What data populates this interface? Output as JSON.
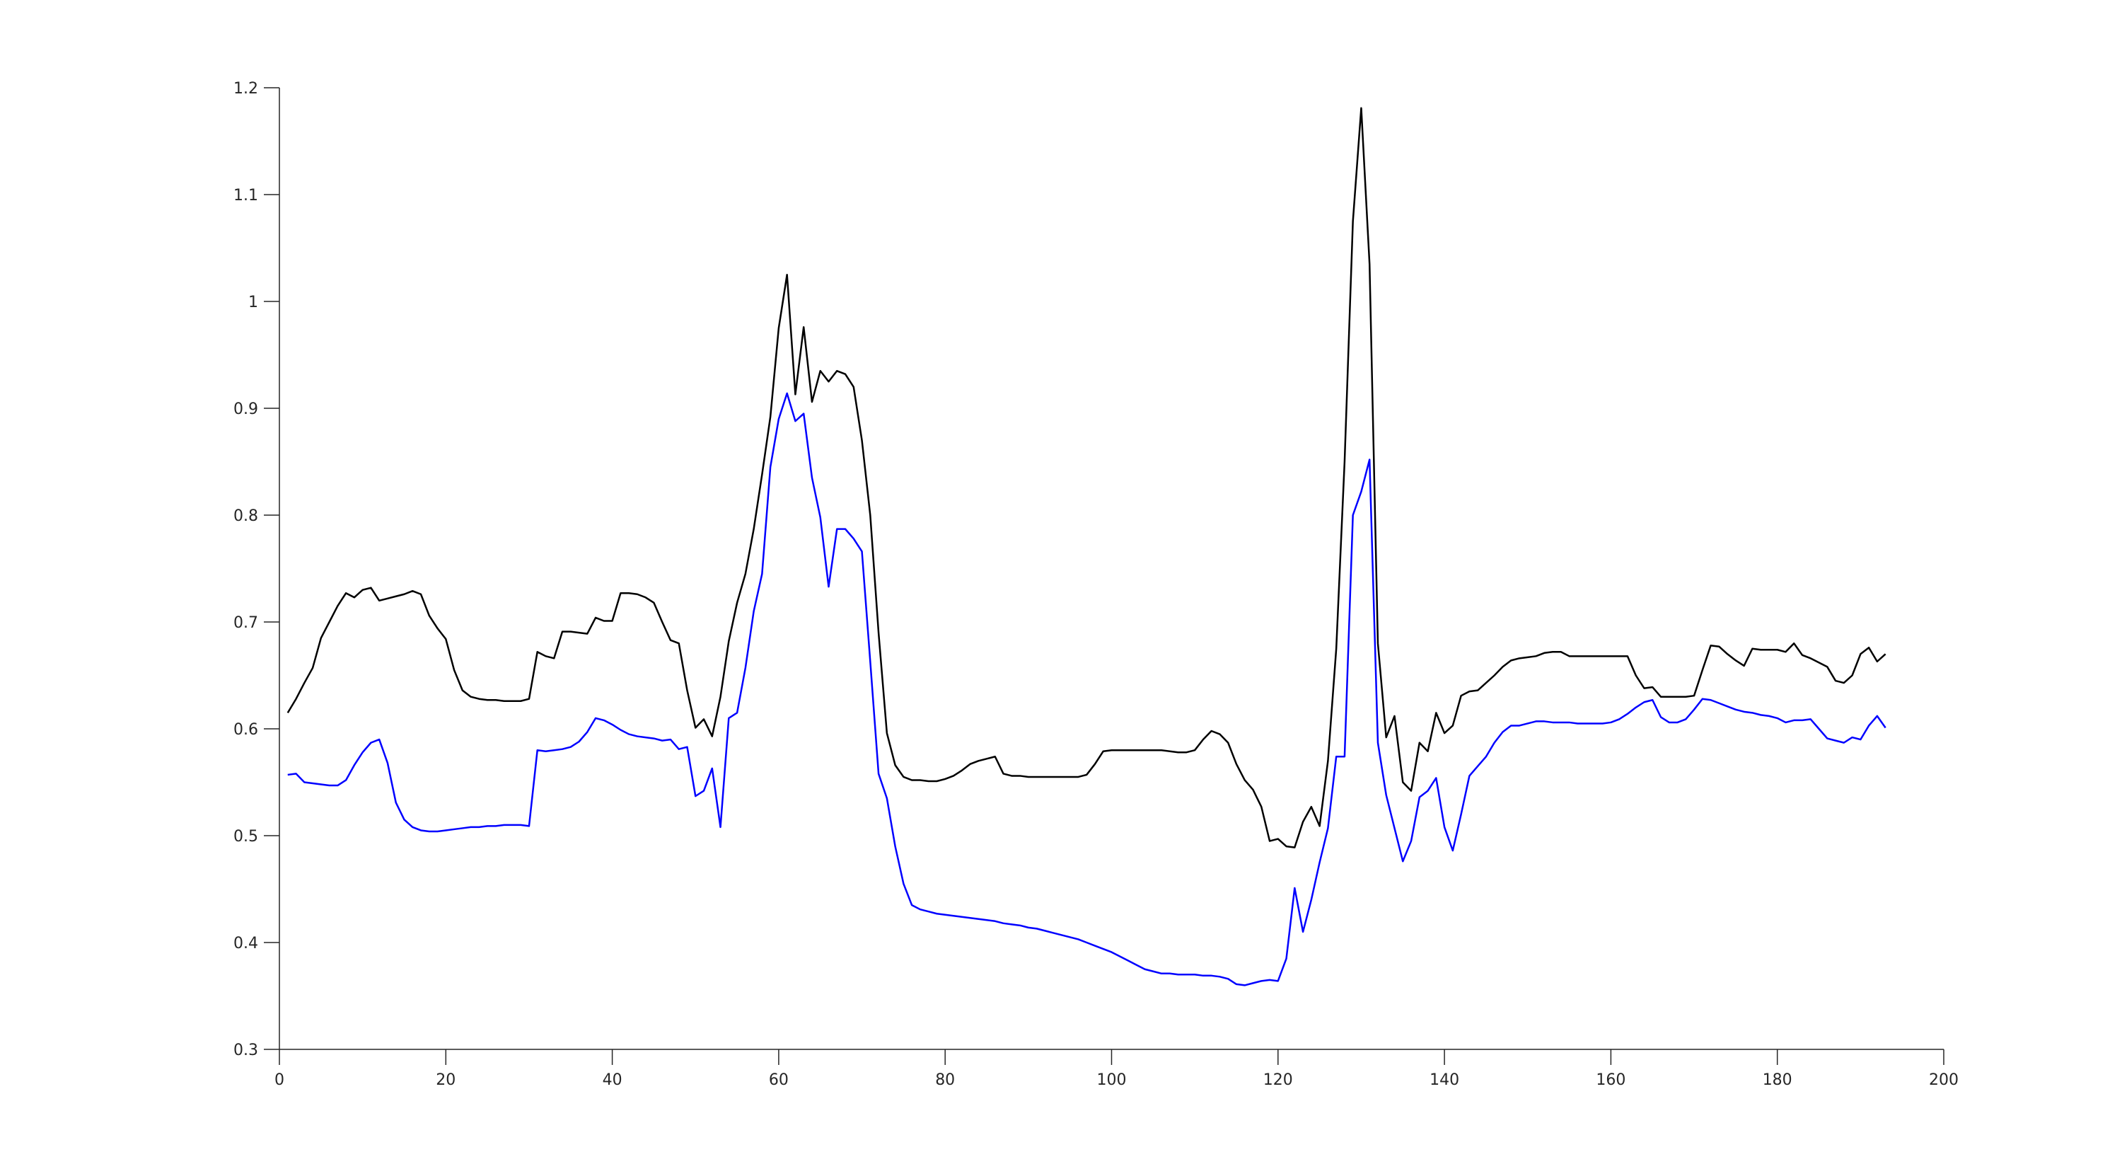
{
  "chart_data": {
    "type": "line",
    "x": [
      1,
      2,
      3,
      4,
      5,
      6,
      7,
      8,
      9,
      10,
      11,
      12,
      13,
      14,
      15,
      16,
      17,
      18,
      19,
      20,
      21,
      22,
      23,
      24,
      25,
      26,
      27,
      28,
      29,
      30,
      31,
      32,
      33,
      34,
      35,
      36,
      37,
      38,
      39,
      40,
      41,
      42,
      43,
      44,
      45,
      46,
      47,
      48,
      49,
      50,
      51,
      52,
      53,
      54,
      55,
      56,
      57,
      58,
      59,
      60,
      61,
      62,
      63,
      64,
      65,
      66,
      67,
      68,
      69,
      70,
      71,
      72,
      73,
      74,
      75,
      76,
      77,
      78,
      79,
      80,
      81,
      82,
      83,
      84,
      85,
      86,
      87,
      88,
      89,
      90,
      91,
      92,
      93,
      94,
      95,
      96,
      97,
      98,
      99,
      100,
      101,
      102,
      103,
      104,
      105,
      106,
      107,
      108,
      109,
      110,
      111,
      112,
      113,
      114,
      115,
      116,
      117,
      118,
      119,
      120,
      121,
      122,
      123,
      124,
      125,
      126,
      127,
      128,
      129,
      130,
      131,
      132,
      133,
      134,
      135,
      136,
      137,
      138,
      139,
      140,
      141,
      142,
      143,
      144,
      145,
      146,
      147,
      148,
      149,
      150,
      151,
      152,
      153,
      154,
      155,
      156,
      157,
      158,
      159,
      160,
      161,
      162,
      163,
      164,
      165,
      166,
      167,
      168,
      169,
      170,
      171,
      172,
      173,
      174,
      175,
      176,
      177,
      178,
      179,
      180,
      181,
      182,
      183,
      184,
      185,
      186,
      187,
      188,
      189,
      190,
      191,
      192,
      193
    ],
    "series": [
      {
        "color": "#000000",
        "values": [
          0.615,
          0.628,
          0.643,
          0.657,
          0.685,
          0.7,
          0.715,
          0.727,
          0.723,
          0.73,
          0.732,
          0.72,
          0.722,
          0.724,
          0.726,
          0.729,
          0.726,
          0.706,
          0.694,
          0.684,
          0.655,
          0.636,
          0.63,
          0.628,
          0.627,
          0.627,
          0.626,
          0.626,
          0.626,
          0.628,
          0.672,
          0.668,
          0.666,
          0.691,
          0.691,
          0.69,
          0.689,
          0.704,
          0.701,
          0.701,
          0.727,
          0.727,
          0.726,
          0.723,
          0.718,
          0.7,
          0.683,
          0.68,
          0.636,
          0.601,
          0.609,
          0.593,
          0.63,
          0.682,
          0.718,
          0.745,
          0.787,
          0.838,
          0.892,
          0.975,
          1.025,
          0.913,
          0.976,
          0.906,
          0.935,
          0.925,
          0.935,
          0.932,
          0.92,
          0.87,
          0.8,
          0.69,
          0.596,
          0.566,
          0.555,
          0.552,
          0.552,
          0.551,
          0.551,
          0.553,
          0.556,
          0.561,
          0.567,
          0.57,
          0.572,
          0.574,
          0.558,
          0.556,
          0.556,
          0.555,
          0.555,
          0.555,
          0.555,
          0.555,
          0.555,
          0.555,
          0.557,
          0.567,
          0.579,
          0.58,
          0.58,
          0.58,
          0.58,
          0.58,
          0.58,
          0.58,
          0.579,
          0.578,
          0.578,
          0.58,
          0.59,
          0.598,
          0.595,
          0.587,
          0.567,
          0.552,
          0.543,
          0.527,
          0.495,
          0.497,
          0.49,
          0.489,
          0.513,
          0.527,
          0.509,
          0.57,
          0.675,
          0.85,
          1.075,
          1.181,
          1.035,
          0.68,
          0.592,
          0.612,
          0.55,
          0.542,
          0.587,
          0.579,
          0.615,
          0.596,
          0.603,
          0.631,
          0.635,
          0.636,
          0.643,
          0.65,
          0.658,
          0.664,
          0.666,
          0.667,
          0.668,
          0.671,
          0.672,
          0.672,
          0.668,
          0.668,
          0.668,
          0.668,
          0.668,
          0.668,
          0.668,
          0.668,
          0.65,
          0.638,
          0.639,
          0.63,
          0.63,
          0.63,
          0.63,
          0.631,
          0.655,
          0.678,
          0.677,
          0.67,
          0.664,
          0.659,
          0.675,
          0.674,
          0.674,
          0.674,
          0.672,
          0.68,
          0.669,
          0.666,
          0.662,
          0.658,
          0.645,
          0.643,
          0.65,
          0.67,
          0.676,
          0.663,
          0.67
        ]
      },
      {
        "color": "#0000ff",
        "values": [
          0.557,
          0.558,
          0.55,
          0.549,
          0.548,
          0.547,
          0.547,
          0.552,
          0.566,
          0.578,
          0.587,
          0.59,
          0.568,
          0.531,
          0.515,
          0.508,
          0.505,
          0.504,
          0.504,
          0.505,
          0.506,
          0.507,
          0.508,
          0.508,
          0.509,
          0.509,
          0.51,
          0.51,
          0.51,
          0.509,
          0.58,
          0.579,
          0.58,
          0.581,
          0.583,
          0.588,
          0.597,
          0.61,
          0.608,
          0.604,
          0.599,
          0.595,
          0.593,
          0.592,
          0.591,
          0.589,
          0.59,
          0.581,
          0.583,
          0.537,
          0.542,
          0.563,
          0.508,
          0.61,
          0.615,
          0.657,
          0.71,
          0.745,
          0.845,
          0.89,
          0.914,
          0.888,
          0.895,
          0.835,
          0.798,
          0.733,
          0.787,
          0.787,
          0.778,
          0.766,
          0.663,
          0.558,
          0.535,
          0.49,
          0.455,
          0.435,
          0.431,
          0.429,
          0.427,
          0.426,
          0.425,
          0.424,
          0.423,
          0.422,
          0.421,
          0.42,
          0.418,
          0.417,
          0.416,
          0.414,
          0.413,
          0.411,
          0.409,
          0.407,
          0.405,
          0.403,
          0.4,
          0.397,
          0.394,
          0.391,
          0.387,
          0.383,
          0.379,
          0.375,
          0.373,
          0.371,
          0.371,
          0.37,
          0.37,
          0.37,
          0.369,
          0.369,
          0.368,
          0.366,
          0.361,
          0.36,
          0.362,
          0.364,
          0.365,
          0.364,
          0.385,
          0.451,
          0.41,
          0.44,
          0.475,
          0.507,
          0.574,
          0.574,
          0.8,
          0.822,
          0.852,
          0.587,
          0.538,
          0.507,
          0.476,
          0.495,
          0.536,
          0.542,
          0.554,
          0.508,
          0.486,
          0.52,
          0.556,
          0.565,
          0.574,
          0.587,
          0.597,
          0.603,
          0.603,
          0.605,
          0.607,
          0.607,
          0.606,
          0.606,
          0.606,
          0.605,
          0.605,
          0.605,
          0.605,
          0.606,
          0.609,
          0.614,
          0.62,
          0.625,
          0.627,
          0.611,
          0.606,
          0.606,
          0.609,
          0.618,
          0.628,
          0.627,
          0.624,
          0.621,
          0.618,
          0.616,
          0.615,
          0.613,
          0.612,
          0.61,
          0.606,
          0.608,
          0.608,
          0.609,
          0.6,
          0.591,
          0.589,
          0.587,
          0.592,
          0.59,
          0.603,
          0.612,
          0.601
        ]
      }
    ],
    "xlim": [
      0,
      200
    ],
    "xticks": [
      0,
      20,
      40,
      60,
      80,
      100,
      120,
      140,
      160,
      180,
      200
    ],
    "ylim": [
      0.3,
      1.2
    ],
    "yticks": [
      0.3,
      0.4,
      0.5,
      0.6,
      0.7,
      0.8,
      0.9,
      1,
      1.1,
      1.2
    ],
    "grid": false
  }
}
